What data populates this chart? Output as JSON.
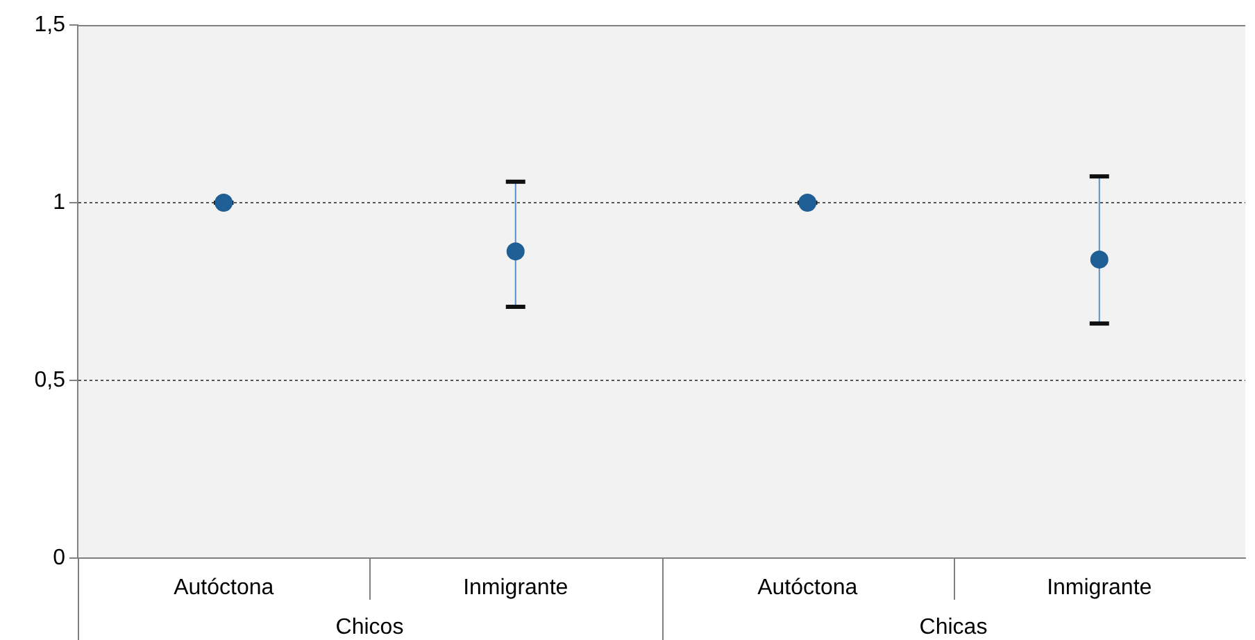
{
  "chart_data": {
    "type": "scatter",
    "categories": [
      "Autóctona",
      "Inmigrante",
      "Autóctona",
      "Inmigrante"
    ],
    "series": [
      {
        "color": "#1f5f96",
        "values": [
          1,
          0.863,
          1,
          0.84
        ],
        "errors": [
          [
            1,
            1
          ],
          [
            0.707,
            1.059
          ],
          [
            1,
            1
          ],
          [
            0.66,
            1.074
          ]
        ]
      }
    ],
    "ylim": [
      0,
      1.5
    ],
    "yticks": [
      0,
      {
        "value": 0.5,
        "label": "0,5"
      },
      1,
      {
        "value": 1.5,
        "label": "1,5"
      }
    ],
    "annotations": [
      "Chicos",
      "Chicas"
    ],
    "grid": "y",
    "marker": "circle",
    "legend": false
  }
}
